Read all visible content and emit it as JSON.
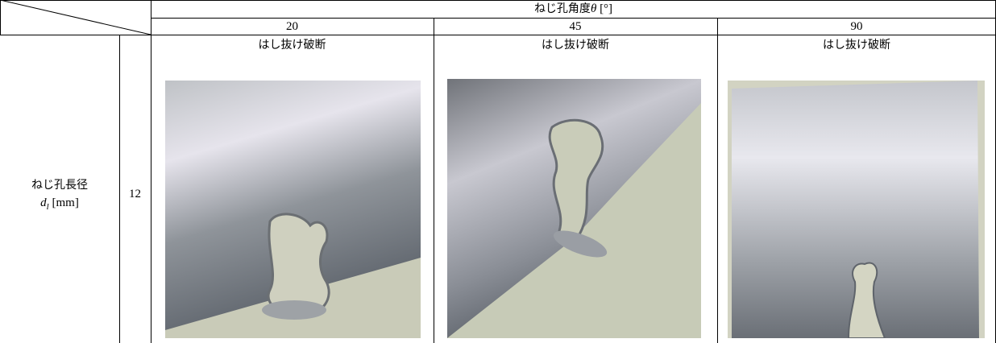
{
  "header": {
    "title_text": "ねじ孔角度",
    "title_symbol": "θ",
    "title_unit": "[°]",
    "columns": [
      "20",
      "45",
      "90"
    ]
  },
  "row": {
    "label": "ねじ孔長径",
    "symbol": "d",
    "subscript": "l",
    "unit": "[mm]",
    "value": "12",
    "cells": [
      "はし抜け破断",
      "はし抜け破断",
      "はし抜け破断"
    ]
  }
}
